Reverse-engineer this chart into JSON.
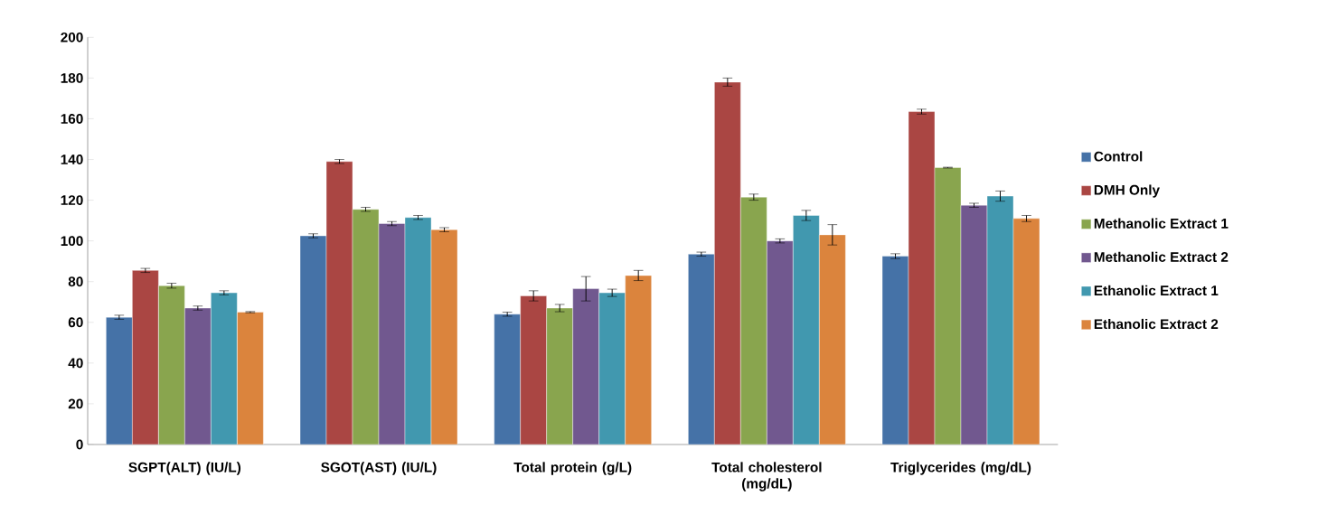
{
  "chart_data": {
    "type": "bar",
    "categories": [
      "SGPT(ALT) (IU/L)",
      "SGOT(AST) (IU/L)",
      "Total protein (g/L)",
      "Total cholesterol (mg/dL)",
      "Triglycerides (mg/dL)"
    ],
    "series": [
      {
        "name": "Control",
        "color": "#4572a7",
        "values": [
          62.5,
          102.5,
          64,
          93.5,
          92.5
        ],
        "errors": [
          1,
          1,
          1,
          1,
          1.2
        ]
      },
      {
        "name": "DMH Only",
        "color": "#aa4643",
        "values": [
          85.5,
          139,
          73,
          178,
          163.5
        ],
        "errors": [
          1,
          1,
          2.5,
          2,
          1.2
        ]
      },
      {
        "name": "Methanolic Extract 1",
        "color": "#89a54e",
        "values": [
          78,
          115.5,
          67,
          121.5,
          136
        ],
        "errors": [
          1.2,
          1,
          1.8,
          1.5,
          0.2
        ]
      },
      {
        "name": "Methanolic Extract 2",
        "color": "#71588f",
        "values": [
          67,
          108.5,
          76.5,
          100,
          117.5
        ],
        "errors": [
          1,
          1,
          6,
          1,
          1
        ]
      },
      {
        "name": "Ethanolic Extract 1",
        "color": "#4198af",
        "values": [
          74.5,
          111.5,
          74.5,
          112.5,
          122
        ],
        "errors": [
          1,
          1,
          1.8,
          2.5,
          2.5
        ]
      },
      {
        "name": "Ethanolic Extract 2",
        "color": "#db843d",
        "values": [
          65,
          105.5,
          83,
          103,
          111
        ],
        "errors": [
          0.3,
          1,
          2.5,
          5,
          1.5
        ]
      }
    ],
    "ylim": [
      0,
      200
    ],
    "yticks": [
      0,
      20,
      40,
      60,
      80,
      100,
      120,
      140,
      160,
      180,
      200
    ],
    "grid": false,
    "legend": "right"
  }
}
